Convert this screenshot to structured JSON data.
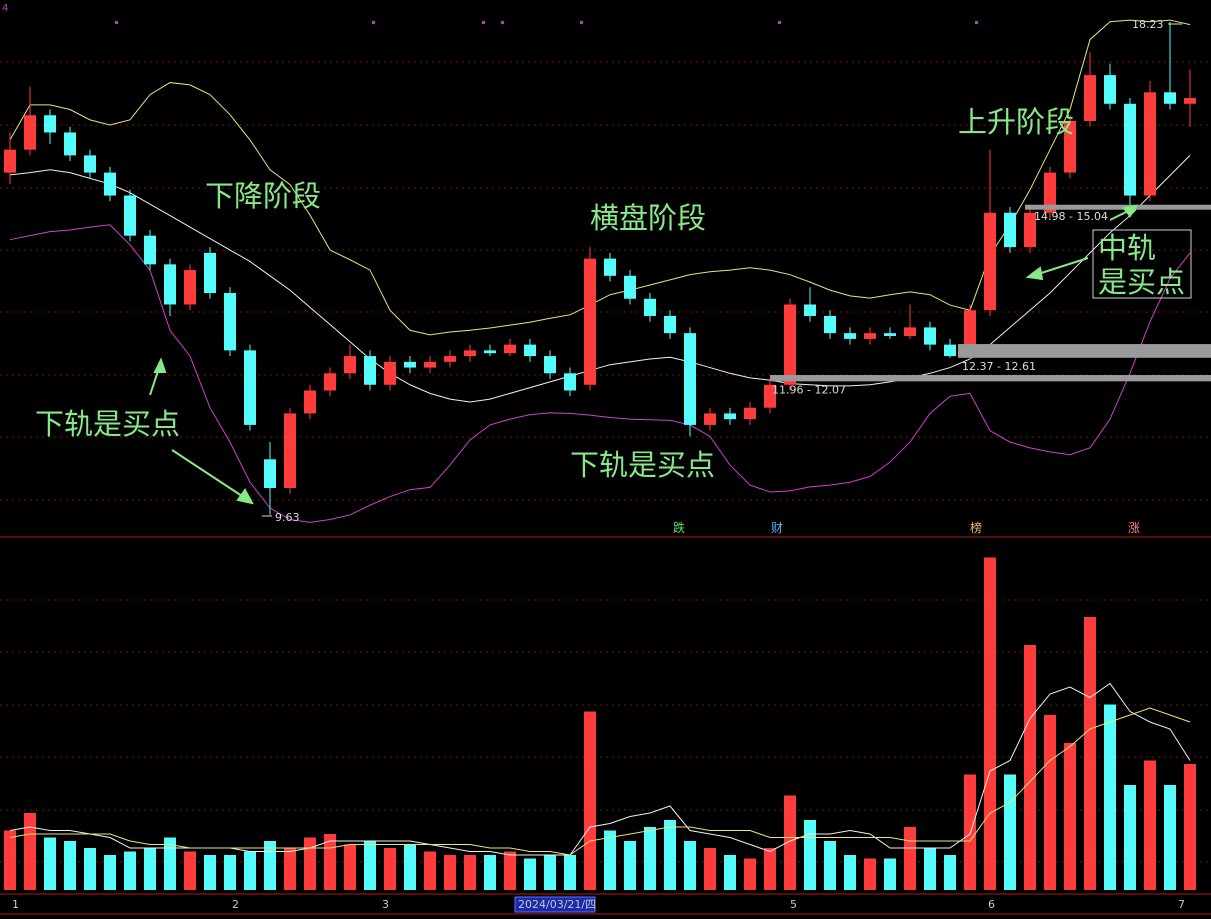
{
  "chart_data": {
    "type": "candlestick",
    "up_color": "#ff3c3c",
    "down_color": "#54fcfc",
    "ylim": [
      9.28,
      18.61
    ],
    "open": [
      15.6,
      16.0,
      16.6,
      16.3,
      15.9,
      15.6,
      15.2,
      14.5,
      14.0,
      13.3,
      14.2,
      13.5,
      12.5,
      10.6,
      10.1,
      11.4,
      11.8,
      12.1,
      12.4,
      11.9,
      12.3,
      12.2,
      12.3,
      12.4,
      12.5,
      12.45,
      12.6,
      12.4,
      12.1,
      11.9,
      14.1,
      13.8,
      13.4,
      13.1,
      12.8,
      11.2,
      11.4,
      11.3,
      11.5,
      11.9,
      13.3,
      13.1,
      12.8,
      12.7,
      12.8,
      12.75,
      12.9,
      12.6,
      12.4,
      13.2,
      14.9,
      14.3,
      14.9,
      15.6,
      16.5,
      17.3,
      16.8,
      15.2,
      17.0,
      16.8
    ],
    "high": [
      16.3,
      17.1,
      16.7,
      16.4,
      16.0,
      15.7,
      15.3,
      14.6,
      14.1,
      14.0,
      14.3,
      13.6,
      12.6,
      10.9,
      11.5,
      11.9,
      12.2,
      12.6,
      12.5,
      12.4,
      12.4,
      12.4,
      12.5,
      12.6,
      12.6,
      12.7,
      12.7,
      12.5,
      12.2,
      14.3,
      14.2,
      13.9,
      13.5,
      13.2,
      12.9,
      11.5,
      11.5,
      11.6,
      12.0,
      13.4,
      13.6,
      13.2,
      12.9,
      12.9,
      12.9,
      13.3,
      13.0,
      12.7,
      13.3,
      16.0,
      15.0,
      15.0,
      15.7,
      16.6,
      17.7,
      17.5,
      16.9,
      17.2,
      18.23,
      17.4
    ],
    "low": [
      15.4,
      15.9,
      16.1,
      15.8,
      15.5,
      15.1,
      14.4,
      13.9,
      13.1,
      13.2,
      13.4,
      12.4,
      11.1,
      9.63,
      10.0,
      11.3,
      11.7,
      12.0,
      11.8,
      11.8,
      12.1,
      12.1,
      12.2,
      12.3,
      12.4,
      12.4,
      12.3,
      12.0,
      11.7,
      11.8,
      13.7,
      13.3,
      13.0,
      12.7,
      11.0,
      11.1,
      11.2,
      11.2,
      11.4,
      11.8,
      13.0,
      12.7,
      12.6,
      12.6,
      12.7,
      12.7,
      12.5,
      12.37,
      12.35,
      13.1,
      14.2,
      14.2,
      14.8,
      15.5,
      16.4,
      16.7,
      15.0,
      15.1,
      16.7,
      16.4
    ],
    "close": [
      16.0,
      16.6,
      16.3,
      15.9,
      15.6,
      15.2,
      14.5,
      14.0,
      13.3,
      13.9,
      13.5,
      12.5,
      11.2,
      10.1,
      11.4,
      11.8,
      12.1,
      12.4,
      11.9,
      12.3,
      12.2,
      12.3,
      12.4,
      12.5,
      12.45,
      12.6,
      12.4,
      12.1,
      11.8,
      14.1,
      13.8,
      13.4,
      13.1,
      12.8,
      11.2,
      11.4,
      11.3,
      11.5,
      11.9,
      13.3,
      13.1,
      12.8,
      12.7,
      12.8,
      12.75,
      12.9,
      12.6,
      12.4,
      13.2,
      14.9,
      14.3,
      14.9,
      15.6,
      16.5,
      17.3,
      16.8,
      15.2,
      17.0,
      16.8,
      16.9
    ],
    "bands": [
      {
        "color": "#e6e67a",
        "values": [
          16.17,
          16.78,
          16.78,
          16.7,
          16.52,
          16.43,
          16.52,
          16.96,
          17.17,
          17.13,
          16.96,
          16.61,
          16.17,
          15.65,
          15.39,
          14.86,
          14.25,
          14.08,
          13.9,
          13.2,
          12.85,
          12.77,
          12.82,
          12.85,
          12.89,
          12.94,
          12.99,
          13.06,
          13.12,
          13.29,
          13.47,
          13.55,
          13.64,
          13.73,
          13.82,
          13.87,
          13.9,
          13.94,
          13.9,
          13.82,
          13.69,
          13.55,
          13.45,
          13.41,
          13.47,
          13.52,
          13.47,
          13.29,
          13.2,
          14.16,
          14.69,
          15.3,
          16.0,
          16.7,
          17.92,
          18.23,
          18.26,
          18.23,
          18.26,
          18.18
        ]
      },
      {
        "color": "#f0f0f0",
        "values": [
          15.56,
          15.6,
          15.65,
          15.6,
          15.5,
          15.4,
          15.25,
          15.05,
          14.85,
          14.65,
          14.45,
          14.25,
          14.05,
          13.8,
          13.55,
          13.25,
          12.95,
          12.65,
          12.35,
          12.1,
          11.9,
          11.75,
          11.65,
          11.6,
          11.65,
          11.75,
          11.85,
          11.95,
          12.05,
          12.15,
          12.25,
          12.3,
          12.35,
          12.38,
          12.3,
          12.2,
          12.1,
          12.02,
          11.98,
          11.92,
          11.9,
          11.88,
          11.88,
          11.9,
          11.95,
          12.02,
          12.1,
          12.2,
          12.35,
          12.6,
          12.9,
          13.2,
          13.5,
          13.85,
          14.2,
          14.55,
          14.85,
          15.2,
          15.55,
          15.9
        ]
      },
      {
        "color": "#d040d0",
        "values": [
          14.43,
          14.5,
          14.57,
          14.6,
          14.65,
          14.69,
          14.34,
          13.9,
          12.85,
          12.4,
          11.5,
          10.9,
          10.2,
          9.75,
          9.55,
          9.5,
          9.55,
          9.63,
          9.8,
          9.95,
          10.07,
          10.11,
          10.5,
          10.94,
          11.2,
          11.3,
          11.38,
          11.41,
          11.4,
          11.37,
          11.33,
          11.3,
          11.29,
          11.28,
          11.2,
          11.0,
          10.5,
          10.15,
          10.03,
          10.05,
          10.12,
          10.15,
          10.2,
          10.3,
          10.55,
          10.9,
          11.4,
          11.7,
          11.75,
          11.1,
          10.9,
          10.8,
          10.73,
          10.68,
          10.8,
          11.3,
          12.1,
          13.0,
          13.75,
          14.2
        ]
      }
    ],
    "volume": {
      "ylim": [
        0,
        100
      ],
      "values": [
        17,
        22,
        15,
        14,
        12,
        10,
        11,
        12,
        15,
        11,
        10,
        10,
        11,
        14,
        12,
        15,
        16,
        13,
        14,
        12,
        13,
        11,
        10,
        10,
        10,
        11,
        9,
        10,
        10,
        51,
        17,
        14,
        18,
        20,
        14,
        12,
        10,
        9,
        12,
        27,
        20,
        14,
        10,
        9,
        9,
        18,
        12,
        10,
        33,
        95,
        33,
        70,
        50,
        42,
        78,
        53,
        30,
        37,
        30,
        36
      ],
      "ma": [
        {
          "color": "#f0f0f0",
          "values": [
            17,
            18,
            17,
            17,
            16,
            15,
            12,
            12,
            12,
            12,
            12,
            12,
            11,
            11,
            11,
            12,
            14,
            14,
            14,
            14,
            14,
            13,
            12,
            11,
            11,
            10,
            10,
            10,
            10,
            18,
            19,
            21,
            22,
            24,
            17,
            16,
            15,
            13,
            11,
            14,
            16,
            16,
            17,
            16,
            12,
            12,
            12,
            12,
            16,
            34,
            37,
            49,
            56,
            58,
            55,
            59,
            51,
            48,
            46,
            37
          ]
        },
        {
          "color": "#e6e67a",
          "values": [
            15,
            16,
            16,
            16,
            16,
            16,
            14,
            13,
            13,
            12,
            12,
            12,
            12,
            12,
            12,
            12,
            12,
            13,
            13,
            13,
            13,
            13,
            13,
            13,
            12,
            12,
            11,
            11,
            10,
            14,
            15,
            16,
            17,
            18,
            18,
            17,
            17,
            17,
            15,
            15,
            15,
            15,
            15,
            15,
            15,
            14,
            14,
            14,
            14,
            22,
            25,
            31,
            37,
            41,
            46,
            48,
            50,
            52,
            50,
            48
          ]
        }
      ]
    },
    "zones": [
      {
        "label": "14.98 - 15.04",
        "low": 14.98,
        "high": 15.04
      },
      {
        "label": "12.37 - 12.61",
        "low": 12.37,
        "high": 12.61
      },
      {
        "label": "11.96 - 12.07",
        "low": 11.96,
        "high": 12.07
      }
    ],
    "extremes": [
      "18.23",
      "9.63"
    ],
    "annotations": [
      "下降阶段",
      "横盘阶段",
      "上升阶段",
      "下轨是买点",
      "下轨是买点",
      [
        "中轨",
        "是买点"
      ]
    ],
    "events": [
      "跌",
      "财",
      "榜",
      "涨"
    ],
    "corner_label": "4",
    "x_labels": [
      "1",
      "2",
      "3",
      "5",
      "6",
      "7"
    ],
    "date_label": "2024/03/21/四"
  }
}
